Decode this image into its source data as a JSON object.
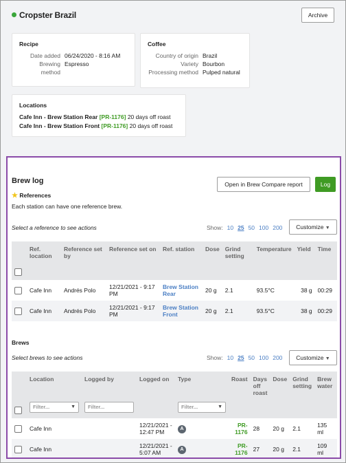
{
  "header": {
    "title": "Cropster Brazil",
    "archive_label": "Archive"
  },
  "recipe": {
    "heading": "Recipe",
    "rows": [
      {
        "k": "Date added",
        "v": "06/24/2020 - 8:16 AM"
      },
      {
        "k": "Brewing method",
        "v": "Espresso"
      }
    ]
  },
  "coffee": {
    "heading": "Coffee",
    "rows": [
      {
        "k": "Country of origin",
        "v": "Brazil"
      },
      {
        "k": "Variety",
        "v": "Bourbon"
      },
      {
        "k": "Processing method",
        "v": "Pulped natural"
      }
    ]
  },
  "locations": {
    "heading": "Locations",
    "items": [
      {
        "name": "Cafe Inn - Brew Station Rear",
        "code": "[PR-1176]",
        "age": "20 days off roast"
      },
      {
        "name": "Cafe Inn - Brew Station Front",
        "code": "[PR-1176]",
        "age": "20 days off roast"
      }
    ]
  },
  "brewlog": {
    "title": "Brew log",
    "compare_label": "Open in Brew Compare report",
    "log_label": "Log",
    "references_label": "References",
    "references_note": "Each station can have one reference brew.",
    "ref_actions_hint": "Select a reference to see actions",
    "show_label": "Show:",
    "page_sizes": [
      "10",
      "25",
      "50",
      "100",
      "200"
    ],
    "customize_label": "Customize",
    "ref_columns": [
      "Ref. location",
      "Reference set by",
      "Reference set on",
      "Ref. station",
      "Dose",
      "Grind setting",
      "Temperature",
      "Yield",
      "Time"
    ],
    "ref_rows": [
      {
        "location": "Cafe Inn",
        "by": "Andrés Polo",
        "on": "12/21/2021 - 9:17 PM",
        "station": "Brew Station Rear",
        "dose": "20 g",
        "grind": "2.1",
        "temp": "93.5°C",
        "yield": "38 g",
        "time": "00:29"
      },
      {
        "location": "Cafe Inn",
        "by": "Andrés Polo",
        "on": "12/21/2021 - 9:17 PM",
        "station": "Brew Station Front",
        "dose": "20 g",
        "grind": "2.1",
        "temp": "93.5°C",
        "yield": "38 g",
        "time": "00:29"
      }
    ],
    "brews_label": "Brews",
    "brews_actions_hint": "Select brews to see actions",
    "brew_columns": [
      "Location",
      "Logged by",
      "Logged on",
      "Type",
      "Roast",
      "Days off roast",
      "Dose",
      "Grind setting",
      "Brew water"
    ],
    "filter_placeholder": "Filter...",
    "brew_rows": [
      {
        "location": "Cafe Inn",
        "on": "12/21/2021 - 12:47 PM",
        "type": "A",
        "roast": "PR-1176",
        "days": "28",
        "dose": "20 g",
        "grind": "2.1",
        "water": "135 ml"
      },
      {
        "location": "Cafe Inn",
        "on": "12/21/2021 - 5:07 AM",
        "type": "A",
        "roast": "PR-1176",
        "days": "27",
        "dose": "20 g",
        "grind": "2.1",
        "water": "109 ml"
      }
    ]
  },
  "colors": {
    "accent_green": "#3f9b24",
    "highlight_border": "#8a4aa8",
    "link": "#4b7fc4"
  }
}
